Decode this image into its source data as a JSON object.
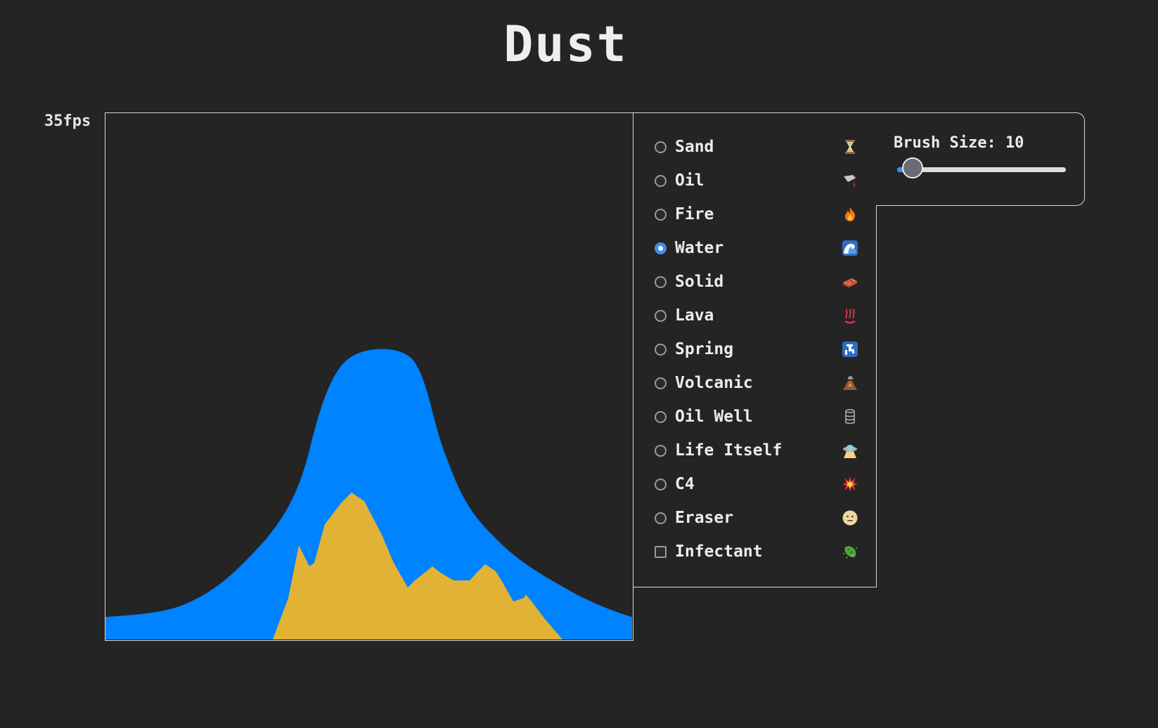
{
  "app": {
    "title": "Dust",
    "fps_label": "35fps"
  },
  "materials": [
    {
      "label": "Sand",
      "icon": "hourglass-icon",
      "control": "radio",
      "selected": false
    },
    {
      "label": "Oil",
      "icon": "oil-can-icon",
      "control": "radio",
      "selected": false
    },
    {
      "label": "Fire",
      "icon": "fire-icon",
      "control": "radio",
      "selected": false
    },
    {
      "label": "Water",
      "icon": "wave-icon",
      "control": "radio",
      "selected": true
    },
    {
      "label": "Solid",
      "icon": "brick-icon",
      "control": "radio",
      "selected": false
    },
    {
      "label": "Lava",
      "icon": "hot-springs-icon",
      "control": "radio",
      "selected": false
    },
    {
      "label": "Spring",
      "icon": "faucet-icon",
      "control": "radio",
      "selected": false
    },
    {
      "label": "Volcanic",
      "icon": "volcano-icon",
      "control": "radio",
      "selected": false
    },
    {
      "label": "Oil Well",
      "icon": "oil-drum-icon",
      "control": "radio",
      "selected": false
    },
    {
      "label": "Life Itself",
      "icon": "ufo-icon",
      "control": "radio",
      "selected": false
    },
    {
      "label": "C4",
      "icon": "explosion-icon",
      "control": "radio",
      "selected": false
    },
    {
      "label": "Eraser",
      "icon": "neutral-face-icon",
      "control": "radio",
      "selected": false
    },
    {
      "label": "Infectant",
      "icon": "microbe-icon",
      "control": "checkbox",
      "selected": false
    }
  ],
  "brush": {
    "label": "Brush Size: 10",
    "value": 10,
    "min": 1,
    "max": 100
  },
  "simulation": {
    "water_color": "#0083ff",
    "sand_color": "#e2b234",
    "background_color": "#242424"
  }
}
